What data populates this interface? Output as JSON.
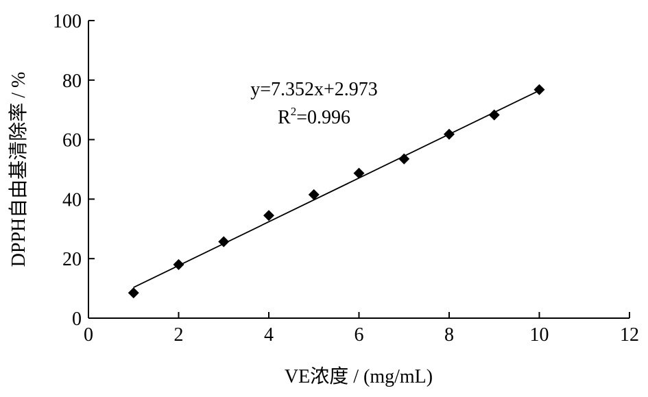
{
  "chart_data": {
    "type": "scatter",
    "title": "",
    "xlabel": "VE浓度 / (mg/mL)",
    "ylabel": "DPPH自由基清除率 / %",
    "xlim": [
      0,
      12
    ],
    "ylim": [
      0,
      100
    ],
    "xticks": [
      0,
      2,
      4,
      6,
      8,
      10,
      12
    ],
    "yticks": [
      0,
      20,
      40,
      60,
      80,
      100
    ],
    "grid": false,
    "series": [
      {
        "marker": "diamond",
        "color": "#000000",
        "x": [
          1,
          2,
          3,
          4,
          5,
          6,
          7,
          8,
          9,
          10
        ],
        "y": [
          8.5,
          18.0,
          25.7,
          34.5,
          41.5,
          48.7,
          53.5,
          61.8,
          68.3,
          76.8
        ]
      }
    ],
    "trendline": {
      "slope": 7.352,
      "intercept": 2.973,
      "x_range": [
        1,
        10
      ],
      "color": "#000000"
    },
    "annotations": {
      "equation": "y=7.352x+2.973",
      "r_squared_prefix": "R",
      "r_squared_superscript": "2",
      "r_squared_value": "=0.996"
    }
  }
}
